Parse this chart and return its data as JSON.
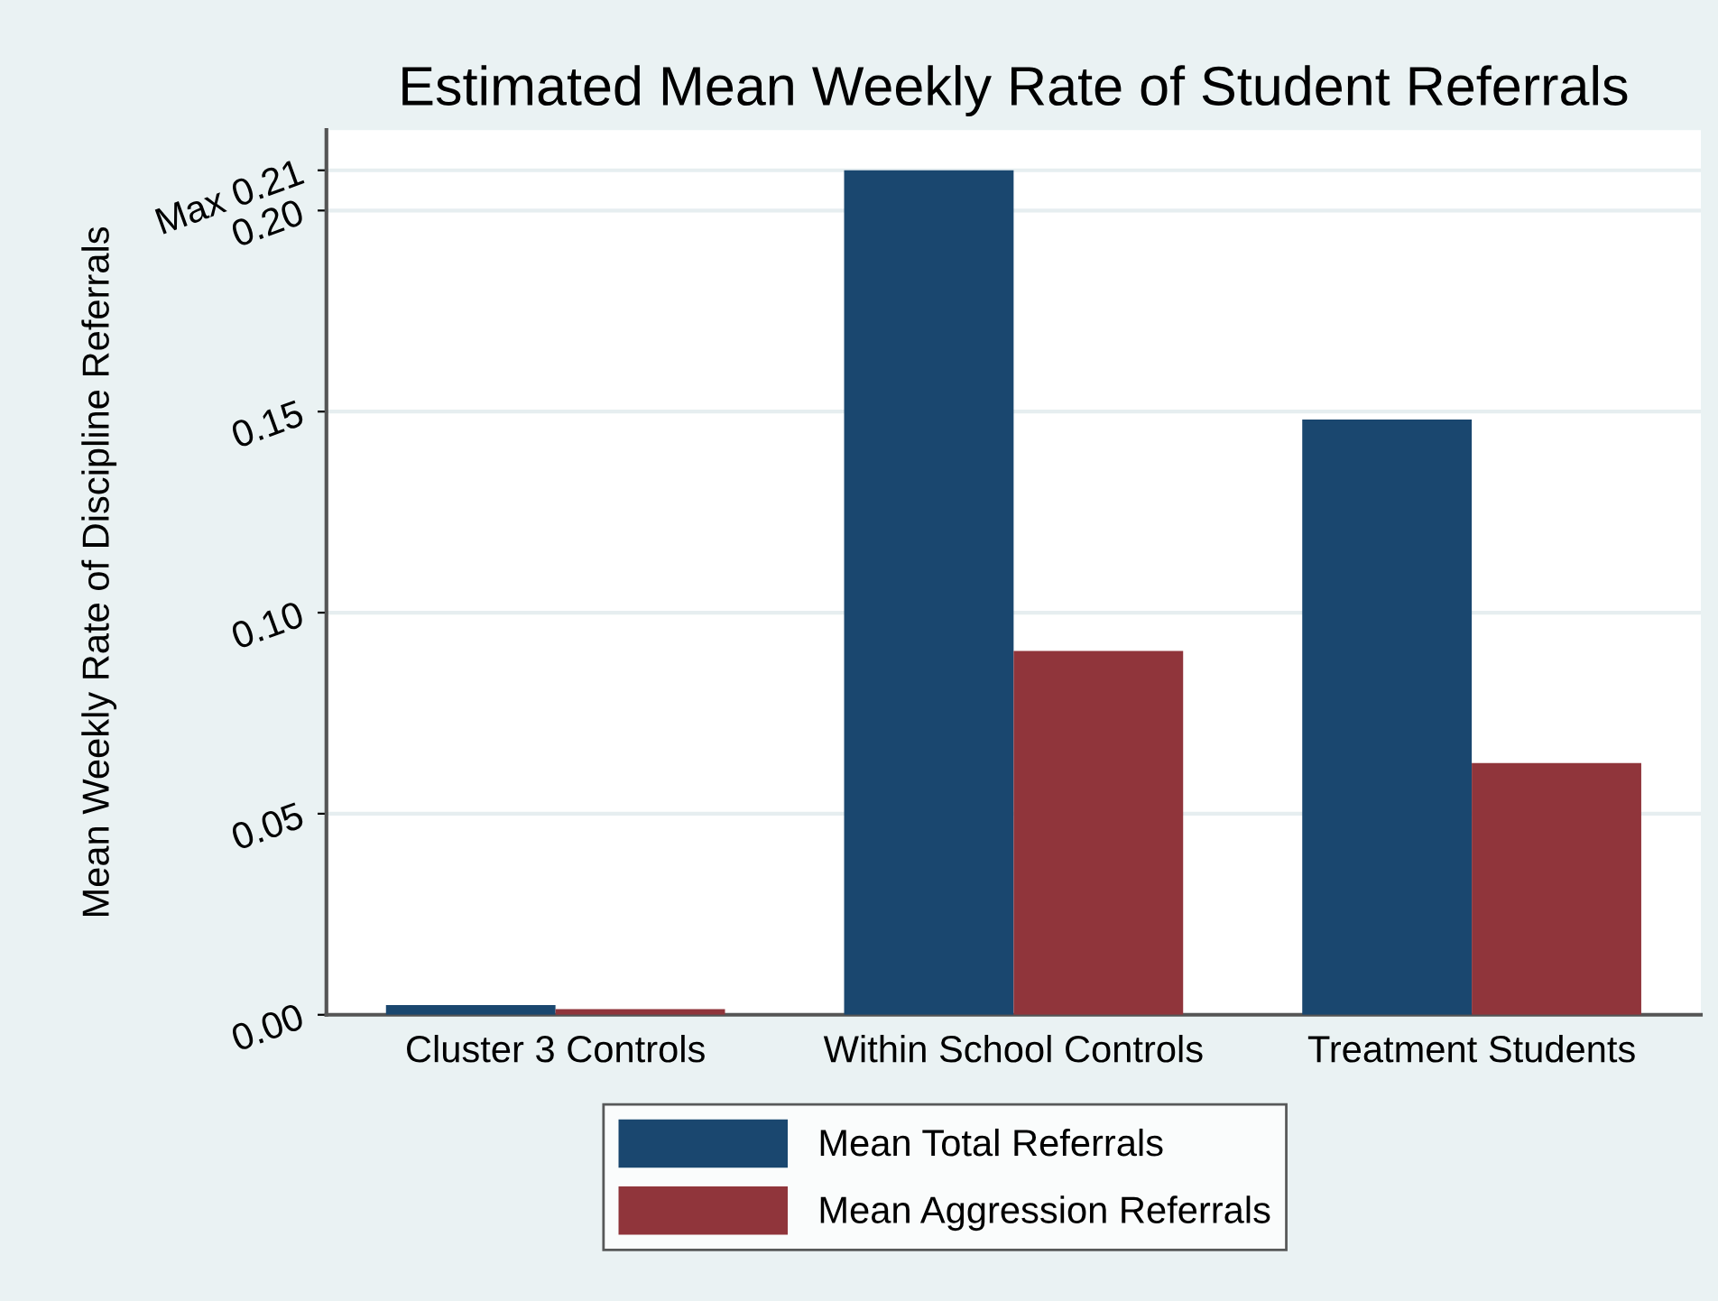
{
  "chart_data": {
    "type": "bar",
    "title": "Estimated Mean Weekly Rate of Student Referrals",
    "ylabel": "Mean Weekly Rate of Discipline Referrals",
    "categories": [
      "Cluster 3 Controls",
      "Within School Controls",
      "Treatment Students"
    ],
    "series": [
      {
        "name": "Mean Total Referrals",
        "color": "#1a476f",
        "values": [
          0.0024,
          0.21,
          0.148
        ]
      },
      {
        "name": "Mean Aggression Referrals",
        "color": "#90353b",
        "values": [
          0.0014,
          0.0905,
          0.0626
        ]
      }
    ],
    "ylim": [
      0,
      0.22
    ],
    "yticks": [
      {
        "value": 0,
        "label": "0.00"
      },
      {
        "value": 0.05,
        "label": "0.05"
      },
      {
        "value": 0.1,
        "label": "0.10"
      },
      {
        "value": 0.15,
        "label": "0.15"
      },
      {
        "value": 0.2,
        "label": "0.20"
      },
      {
        "value": 0.21,
        "label": "Max 0.21"
      }
    ],
    "grid": "y",
    "legend": "bottom"
  }
}
